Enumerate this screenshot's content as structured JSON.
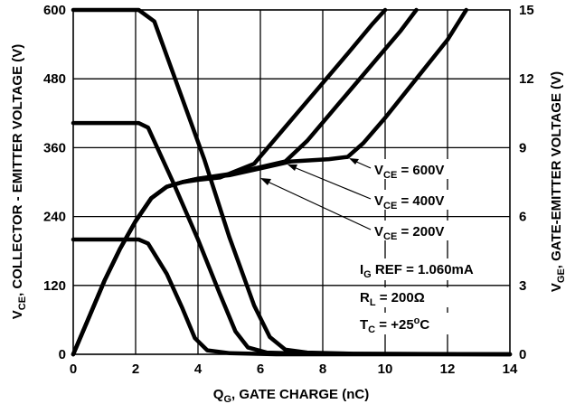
{
  "chart_data": {
    "type": "line",
    "xlabel_main": "Q",
    "xlabel_sub": "G",
    "xlabel_rest": ", GATE CHARGE (nC)",
    "ylabel_left_main": "V",
    "ylabel_left_sub": "CE",
    "ylabel_left_rest": ", COLLECTOR - EMITTER VOLTAGE (V)",
    "ylabel_right_main": "V",
    "ylabel_right_sub": "GE",
    "ylabel_right_rest": ", GATE-EMITTER VOLTAGE (V)",
    "xlim": [
      0,
      14
    ],
    "ylim_left": [
      0,
      600
    ],
    "ylim_right": [
      0,
      15
    ],
    "x_ticks": [
      0,
      2,
      4,
      6,
      8,
      10,
      12,
      14
    ],
    "y_left_ticks": [
      0,
      120,
      240,
      360,
      480,
      600
    ],
    "y_right_ticks": [
      0,
      3,
      6,
      9,
      12,
      15
    ],
    "grid": true,
    "series": [
      {
        "name": "V_CE = 600V",
        "axis": "left",
        "points": [
          [
            0,
            600
          ],
          [
            2.1,
            600
          ],
          [
            2.6,
            580
          ],
          [
            3.4,
            460
          ],
          [
            4.2,
            340
          ],
          [
            5.0,
            205
          ],
          [
            5.8,
            85
          ],
          [
            6.3,
            30
          ],
          [
            6.8,
            8
          ],
          [
            7.5,
            3
          ],
          [
            9,
            1
          ],
          [
            14,
            0
          ]
        ]
      },
      {
        "name": "V_CE = 400V",
        "axis": "left",
        "points": [
          [
            0,
            403
          ],
          [
            2.1,
            403
          ],
          [
            2.4,
            395
          ],
          [
            3.2,
            300
          ],
          [
            4.0,
            200
          ],
          [
            4.7,
            105
          ],
          [
            5.2,
            40
          ],
          [
            5.6,
            12
          ],
          [
            6.2,
            3
          ],
          [
            7.5,
            1
          ],
          [
            14,
            0
          ]
        ]
      },
      {
        "name": "V_CE = 200V",
        "axis": "left",
        "points": [
          [
            0,
            200
          ],
          [
            2.1,
            200
          ],
          [
            2.4,
            193
          ],
          [
            3.0,
            140
          ],
          [
            3.5,
            80
          ],
          [
            3.9,
            28
          ],
          [
            4.3,
            7
          ],
          [
            5,
            2
          ],
          [
            6.5,
            0
          ],
          [
            14,
            0
          ]
        ]
      },
      {
        "name": "V_GE (V_CE = 600V)",
        "axis": "right",
        "points": [
          [
            0,
            0
          ],
          [
            0.5,
            1.6
          ],
          [
            1.0,
            3.2
          ],
          [
            1.5,
            4.6
          ],
          [
            2.0,
            5.8
          ],
          [
            2.5,
            6.8
          ],
          [
            3.0,
            7.3
          ],
          [
            3.5,
            7.5
          ],
          [
            4.0,
            7.65
          ],
          [
            5,
            7.8
          ],
          [
            6,
            8.1
          ],
          [
            7,
            8.4
          ],
          [
            8.2,
            8.5
          ],
          [
            8.8,
            8.6
          ],
          [
            9.3,
            9.2
          ],
          [
            10,
            10.3
          ],
          [
            11,
            12.0
          ],
          [
            12,
            13.7
          ],
          [
            12.6,
            15
          ]
        ]
      },
      {
        "name": "V_GE (V_CE = 400V)",
        "axis": "right",
        "points": [
          [
            0,
            0
          ],
          [
            0.5,
            1.6
          ],
          [
            1.0,
            3.2
          ],
          [
            1.5,
            4.6
          ],
          [
            2.0,
            5.8
          ],
          [
            2.5,
            6.8
          ],
          [
            3.0,
            7.3
          ],
          [
            3.5,
            7.5
          ],
          [
            4.0,
            7.65
          ],
          [
            5,
            7.85
          ],
          [
            6,
            8.15
          ],
          [
            6.8,
            8.4
          ],
          [
            7.5,
            9.3
          ],
          [
            8.5,
            10.9
          ],
          [
            9.5,
            12.5
          ],
          [
            10.5,
            14.1
          ],
          [
            11.0,
            15
          ]
        ]
      },
      {
        "name": "V_GE (V_CE = 200V)",
        "axis": "right",
        "points": [
          [
            0,
            0
          ],
          [
            0.5,
            1.6
          ],
          [
            1.0,
            3.2
          ],
          [
            1.5,
            4.6
          ],
          [
            2.0,
            5.8
          ],
          [
            2.5,
            6.8
          ],
          [
            3.0,
            7.3
          ],
          [
            3.5,
            7.5
          ],
          [
            4.0,
            7.6
          ],
          [
            4.7,
            7.7
          ],
          [
            5.8,
            8.3
          ],
          [
            6.8,
            9.9
          ],
          [
            7.8,
            11.5
          ],
          [
            8.8,
            13.1
          ],
          [
            9.6,
            14.4
          ],
          [
            10.0,
            15
          ]
        ]
      }
    ],
    "annotations": {
      "vce_600": {
        "pre": "V",
        "sub": "CE",
        "post": " = 600V"
      },
      "vce_400": {
        "pre": "V",
        "sub": "CE",
        "post": " = 400V"
      },
      "vce_200": {
        "pre": "V",
        "sub": "CE",
        "post": " = 200V"
      },
      "ig_ref": {
        "pre": "I",
        "sub": "G",
        "post": " REF = 1.060mA"
      },
      "rl": {
        "pre": "R",
        "sub": "L",
        "post": " = 200Ω"
      },
      "tc": {
        "pre": "T",
        "sub": "C",
        "mid": " = +25",
        "sup": "o",
        "post": "C"
      }
    }
  }
}
